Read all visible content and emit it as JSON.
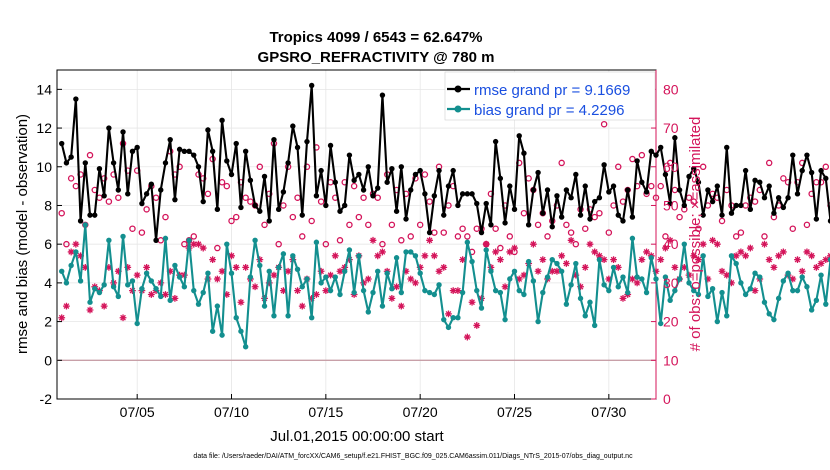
{
  "chart_data": {
    "type": "line",
    "title": "Tropics 4099 / 6543 = 62.647%",
    "subtitle": "GPSRO_REFRACTIVITY @ 780 m",
    "xlabel": "Jul.01,2015 00:00:00 start",
    "ylabel": "rmse and bias (model - observation)",
    "ylabel_right": "# of obs: o=possible; ×=assimilated",
    "footnote": "data file: /Users/raeder/DAI/ATM_forcXX/CAM6_setup/f.e21.FHIST_BGC.f09_025.CAM6assim.011/Diags_NTrS_2015-07/obs_diag_output.nc",
    "x_range_days": [
      0.75,
      32.5
    ],
    "ylim": [
      -2,
      15
    ],
    "y_ticks": [
      -2,
      0,
      2,
      4,
      6,
      8,
      10,
      12,
      14
    ],
    "ylim_right": [
      0,
      85
    ],
    "y_ticks_right": [
      0,
      10,
      20,
      30,
      40,
      50,
      60,
      70,
      80
    ],
    "x_ticks": [
      {
        "day": 5,
        "label": "07/05"
      },
      {
        "day": 10,
        "label": "07/10"
      },
      {
        "day": 15,
        "label": "07/15"
      },
      {
        "day": 20,
        "label": "07/20"
      },
      {
        "day": 25,
        "label": "07/25"
      },
      {
        "day": 30,
        "label": "07/30"
      }
    ],
    "legend": [
      {
        "label": "rmse grand pr = 9.1669",
        "color": "#000000"
      },
      {
        "label": "bias grand pr = 4.2296",
        "color": "#138f8f"
      }
    ],
    "colors": {
      "rmse": "#000000",
      "bias": "#138f8f",
      "obs": "#d4145a",
      "zero_line": "#c8a0a8",
      "grid": "#e6e6e6"
    },
    "step_days": 0.25,
    "x_start_day": 1.0,
    "series": [
      {
        "name": "rmse",
        "values": [
          11.2,
          10.2,
          10.5,
          13.5,
          7.2,
          10.2,
          7.5,
          7.5,
          9.9,
          8.5,
          12.0,
          10.2,
          8.8,
          11.8,
          8.6,
          10.8,
          11.0,
          8.1,
          8.6,
          9.1,
          6.2,
          8.8,
          10.2,
          11.4,
          8.3,
          10.9,
          10.8,
          10.8,
          10.6,
          10.0,
          8.2,
          11.9,
          10.8,
          7.8,
          12.4,
          10.3,
          9.6,
          11.2,
          7.9,
          10.8,
          9.3,
          8.0,
          7.7,
          9.5,
          7.2,
          11.4,
          7.8,
          8.7,
          10.2,
          12.1,
          11.0,
          7.5,
          11.3,
          14.2,
          8.5,
          9.8,
          8.0,
          11.1,
          9.2,
          7.7,
          8.0,
          10.6,
          9.3,
          9.6,
          8.8,
          10.0,
          8.5,
          8.9,
          13.7,
          9.2,
          9.9,
          7.7,
          10.0,
          7.3,
          8.8,
          9.6,
          9.8,
          8.6,
          6.6,
          8.5,
          9.8,
          7.5,
          9.0,
          9.8,
          8.0,
          8.6,
          8.6,
          8.6,
          8.1,
          6.6,
          8.1,
          7.0,
          11.3,
          9.4,
          7.1,
          9.0,
          7.8,
          11.6,
          10.7,
          7.0,
          8.8,
          9.7,
          7.6,
          8.8,
          6.9,
          8.5,
          7.4,
          8.8,
          8.4,
          9.6,
          7.5,
          9.0,
          7.3,
          8.2,
          8.4,
          10.1,
          8.7,
          9.0,
          7.5,
          7.2,
          8.8,
          7.4,
          10.3,
          9.2,
          8.7,
          10.8,
          10.6,
          11.0,
          9.6,
          8.1,
          11.5,
          8.8,
          8.0,
          9.5,
          9.9,
          9.2,
          7.5,
          8.8,
          8.2,
          9.0,
          7.5,
          11.0,
          7.6,
          8.0,
          8.0,
          9.8,
          7.8,
          9.3,
          9.2,
          8.4,
          9.0,
          7.6,
          8.4,
          7.9,
          8.4,
          10.6,
          8.6,
          9.8,
          10.6,
          9.7,
          7.3,
          9.8,
          9.4,
          7.2,
          7.9,
          8.6,
          10.1,
          8.4,
          7.6,
          9.8,
          8.5,
          8.3,
          9.6,
          9.2,
          8.3,
          10.3,
          8.6,
          10.3,
          7.5,
          11.9,
          8.1,
          9.1,
          7.4,
          9.1,
          8.2,
          8.2,
          9.1,
          8.5,
          8.5,
          8.6,
          7.4,
          10.1,
          8.6,
          9.4,
          8.1,
          8.9,
          6.8,
          8.1,
          8.8,
          8.3,
          7.6,
          7.9,
          8.4,
          9.1,
          8.0,
          8.4,
          9.1,
          8.7,
          9.1
        ]
      },
      {
        "name": "bias",
        "values": [
          4.6,
          4.0,
          4.9,
          5.6,
          4.1,
          7.0,
          3.0,
          3.7,
          3.5,
          3.9,
          6.2,
          3.8,
          3.3,
          6.4,
          3.9,
          4.1,
          1.9,
          3.7,
          4.5,
          4.1,
          3.7,
          3.3,
          6.3,
          3.1,
          4.9,
          4.3,
          3.8,
          6.2,
          3.6,
          2.9,
          3.5,
          4.5,
          1.5,
          2.8,
          1.3,
          6.0,
          4.5,
          2.2,
          1.5,
          0.7,
          4.3,
          6.2,
          4.9,
          2.8,
          4.6,
          2.3,
          4.8,
          5.5,
          2.3,
          5.4,
          4.7,
          3.8,
          4.2,
          2.2,
          6.1,
          4.0,
          4.3,
          3.6,
          4.3,
          3.4,
          4.6,
          5.7,
          3.5,
          5.4,
          3.6,
          2.5,
          3.5,
          4.6,
          2.8,
          4.5,
          3.7,
          5.3,
          3.5,
          5.6,
          5.6,
          5.4,
          4.5,
          3.6,
          3.5,
          3.4,
          3.9,
          2.1,
          1.7,
          2.2,
          2.2,
          3.5,
          6.1,
          5.1,
          3.6,
          2.7,
          5.7,
          4.6,
          3.6,
          3.5,
          2.1,
          4.2,
          4.6,
          3.6,
          3.4,
          5.1,
          4.1,
          2.0,
          3.5,
          4.3,
          5.2,
          5.0,
          4.6,
          2.9,
          3.9,
          5.0,
          3.2,
          2.3,
          3.0,
          1.8,
          5.2,
          3.9,
          3.6,
          4.8,
          3.8,
          4.3,
          3.5,
          6.3,
          4.3,
          4.2,
          3.5,
          5.3,
          4.2,
          1.9,
          4.3,
          3.1,
          3.6,
          4.2,
          6.0,
          4.0,
          3.6,
          3.4,
          5.4,
          3.3,
          3.7,
          2.0,
          3.5,
          2.3,
          5.4,
          5.0,
          4.0,
          3.4,
          3.7,
          4.5,
          4.3,
          3.0,
          2.4,
          2.1,
          3.2,
          4.1,
          4.5,
          3.6,
          3.6,
          4.3,
          3.8,
          2.6,
          3.1,
          4.4,
          2.9,
          5.2,
          3.6,
          2.2,
          3.2,
          2.6,
          2.6,
          4.0,
          2.8,
          3.4,
          3.2,
          3.4,
          6.3,
          5.1,
          4.2,
          2.4,
          4.6,
          4.8,
          2.6,
          2.0,
          1.8,
          5.1,
          4.5,
          3.6,
          4.8,
          2.1,
          3.6,
          4.0,
          2.9,
          2.4,
          1.7,
          6.2,
          4.7,
          6.3,
          2.2,
          2.9,
          4.2,
          4.3,
          4.8,
          5.0,
          4.5,
          3.0,
          3.3,
          5.0,
          5.5,
          5.3,
          4.1,
          5.6,
          4.0,
          4.5
        ]
      },
      {
        "name": "obs possible",
        "values": [
          48,
          40,
          57,
          55,
          58,
          45,
          63,
          54,
          52,
          57,
          51,
          58,
          52,
          66,
          59,
          44,
          59,
          43,
          49,
          55,
          52,
          41,
          47,
          64,
          58,
          60,
          40,
          41,
          42,
          58,
          57,
          53,
          62,
          39,
          56,
          55,
          46,
          47,
          56,
          52,
          51,
          50,
          60,
          45,
          53,
          66,
          40,
          50,
          60,
          47,
          52,
          42,
          60,
          46,
          65,
          51,
          40,
          56,
          52,
          41,
          56,
          45,
          55,
          47,
          52,
          45,
          53,
          52,
          40,
          58,
          45,
          54,
          41,
          53,
          42,
          57,
          45,
          58,
          51,
          43,
          60,
          43,
          50,
          55,
          42,
          44,
          42,
          38,
          44,
          44,
          40,
          53,
          44,
          39,
          50,
          42,
          38,
          61,
          48,
          57,
          54,
          45,
          48,
          42,
          46,
          50,
          61,
          45,
          43,
          40,
          49,
          44,
          49,
          47,
          48,
          71,
          43,
          50,
          60,
          51,
          54,
          62,
          55,
          63,
          53,
          55,
          52,
          55,
          42,
          61,
          54,
          47,
          49,
          52,
          51,
          44,
          60,
          50,
          53,
          52,
          46,
          54,
          50,
          42,
          43,
          50,
          52,
          51,
          54,
          42,
          61,
          47,
          50,
          57,
          56,
          44,
          56,
          61,
          45,
          53,
          56,
          56,
          60,
          50,
          66,
          52,
          50,
          60,
          51,
          58,
          39,
          43,
          41,
          42,
          45,
          55,
          65,
          41,
          42,
          43,
          56,
          54,
          51,
          52,
          70,
          44,
          70,
          51,
          45,
          57,
          52,
          63,
          54,
          54,
          67,
          41,
          40,
          55,
          60,
          48,
          43,
          40,
          45,
          49,
          67,
          67,
          58,
          56,
          60
        ]
      },
      {
        "name": "obs assimilated",
        "values": [
          21,
          24,
          38,
          40,
          37,
          34,
          23,
          29,
          28,
          24,
          34,
          30,
          33,
          21,
          34,
          28,
          32,
          28,
          34,
          27,
          28,
          30,
          27,
          33,
          26,
          32,
          32,
          39,
          40,
          40,
          39,
          31,
          36,
          31,
          33,
          27,
          37,
          34,
          25,
          34,
          31,
          29,
          36,
          26,
          30,
          32,
          34,
          28,
          33,
          36,
          28,
          24,
          31,
          26,
          27,
          33,
          28,
          32,
          37,
          33,
          34,
          36,
          27,
          37,
          30,
          31,
          41,
          37,
          38,
          33,
          26,
          29,
          24,
          33,
          31,
          30,
          34,
          37,
          41,
          37,
          33,
          34,
          22,
          28,
          28,
          36,
          16,
          25,
          19,
          26,
          40,
          34,
          38,
          36,
          29,
          38,
          39,
          31,
          32,
          35,
          40,
          33,
          36,
          31,
          33,
          33,
          37,
          35,
          41,
          32,
          29,
          34,
          40,
          38,
          37,
          36,
          31,
          36,
          34,
          26,
          27,
          31,
          30,
          36,
          38,
          37,
          33,
          36,
          39,
          41,
          34,
          31,
          34,
          32,
          37,
          36,
          40,
          31,
          41,
          40,
          33,
          32,
          30,
          37,
          38,
          37,
          39,
          28,
          31,
          40,
          36,
          34,
          37,
          38,
          32,
          31,
          36,
          33,
          38,
          37,
          34,
          35,
          36,
          37,
          38,
          37,
          32,
          40,
          33,
          35,
          37,
          36,
          31,
          34,
          39,
          40,
          30,
          35,
          38,
          36,
          40,
          31,
          29,
          36,
          33,
          37,
          34,
          40,
          33,
          34,
          38,
          37,
          36,
          36,
          40,
          32,
          33,
          41,
          32,
          33,
          38,
          42,
          40,
          39,
          34,
          41,
          37,
          43,
          44,
          38
        ]
      }
    ]
  }
}
